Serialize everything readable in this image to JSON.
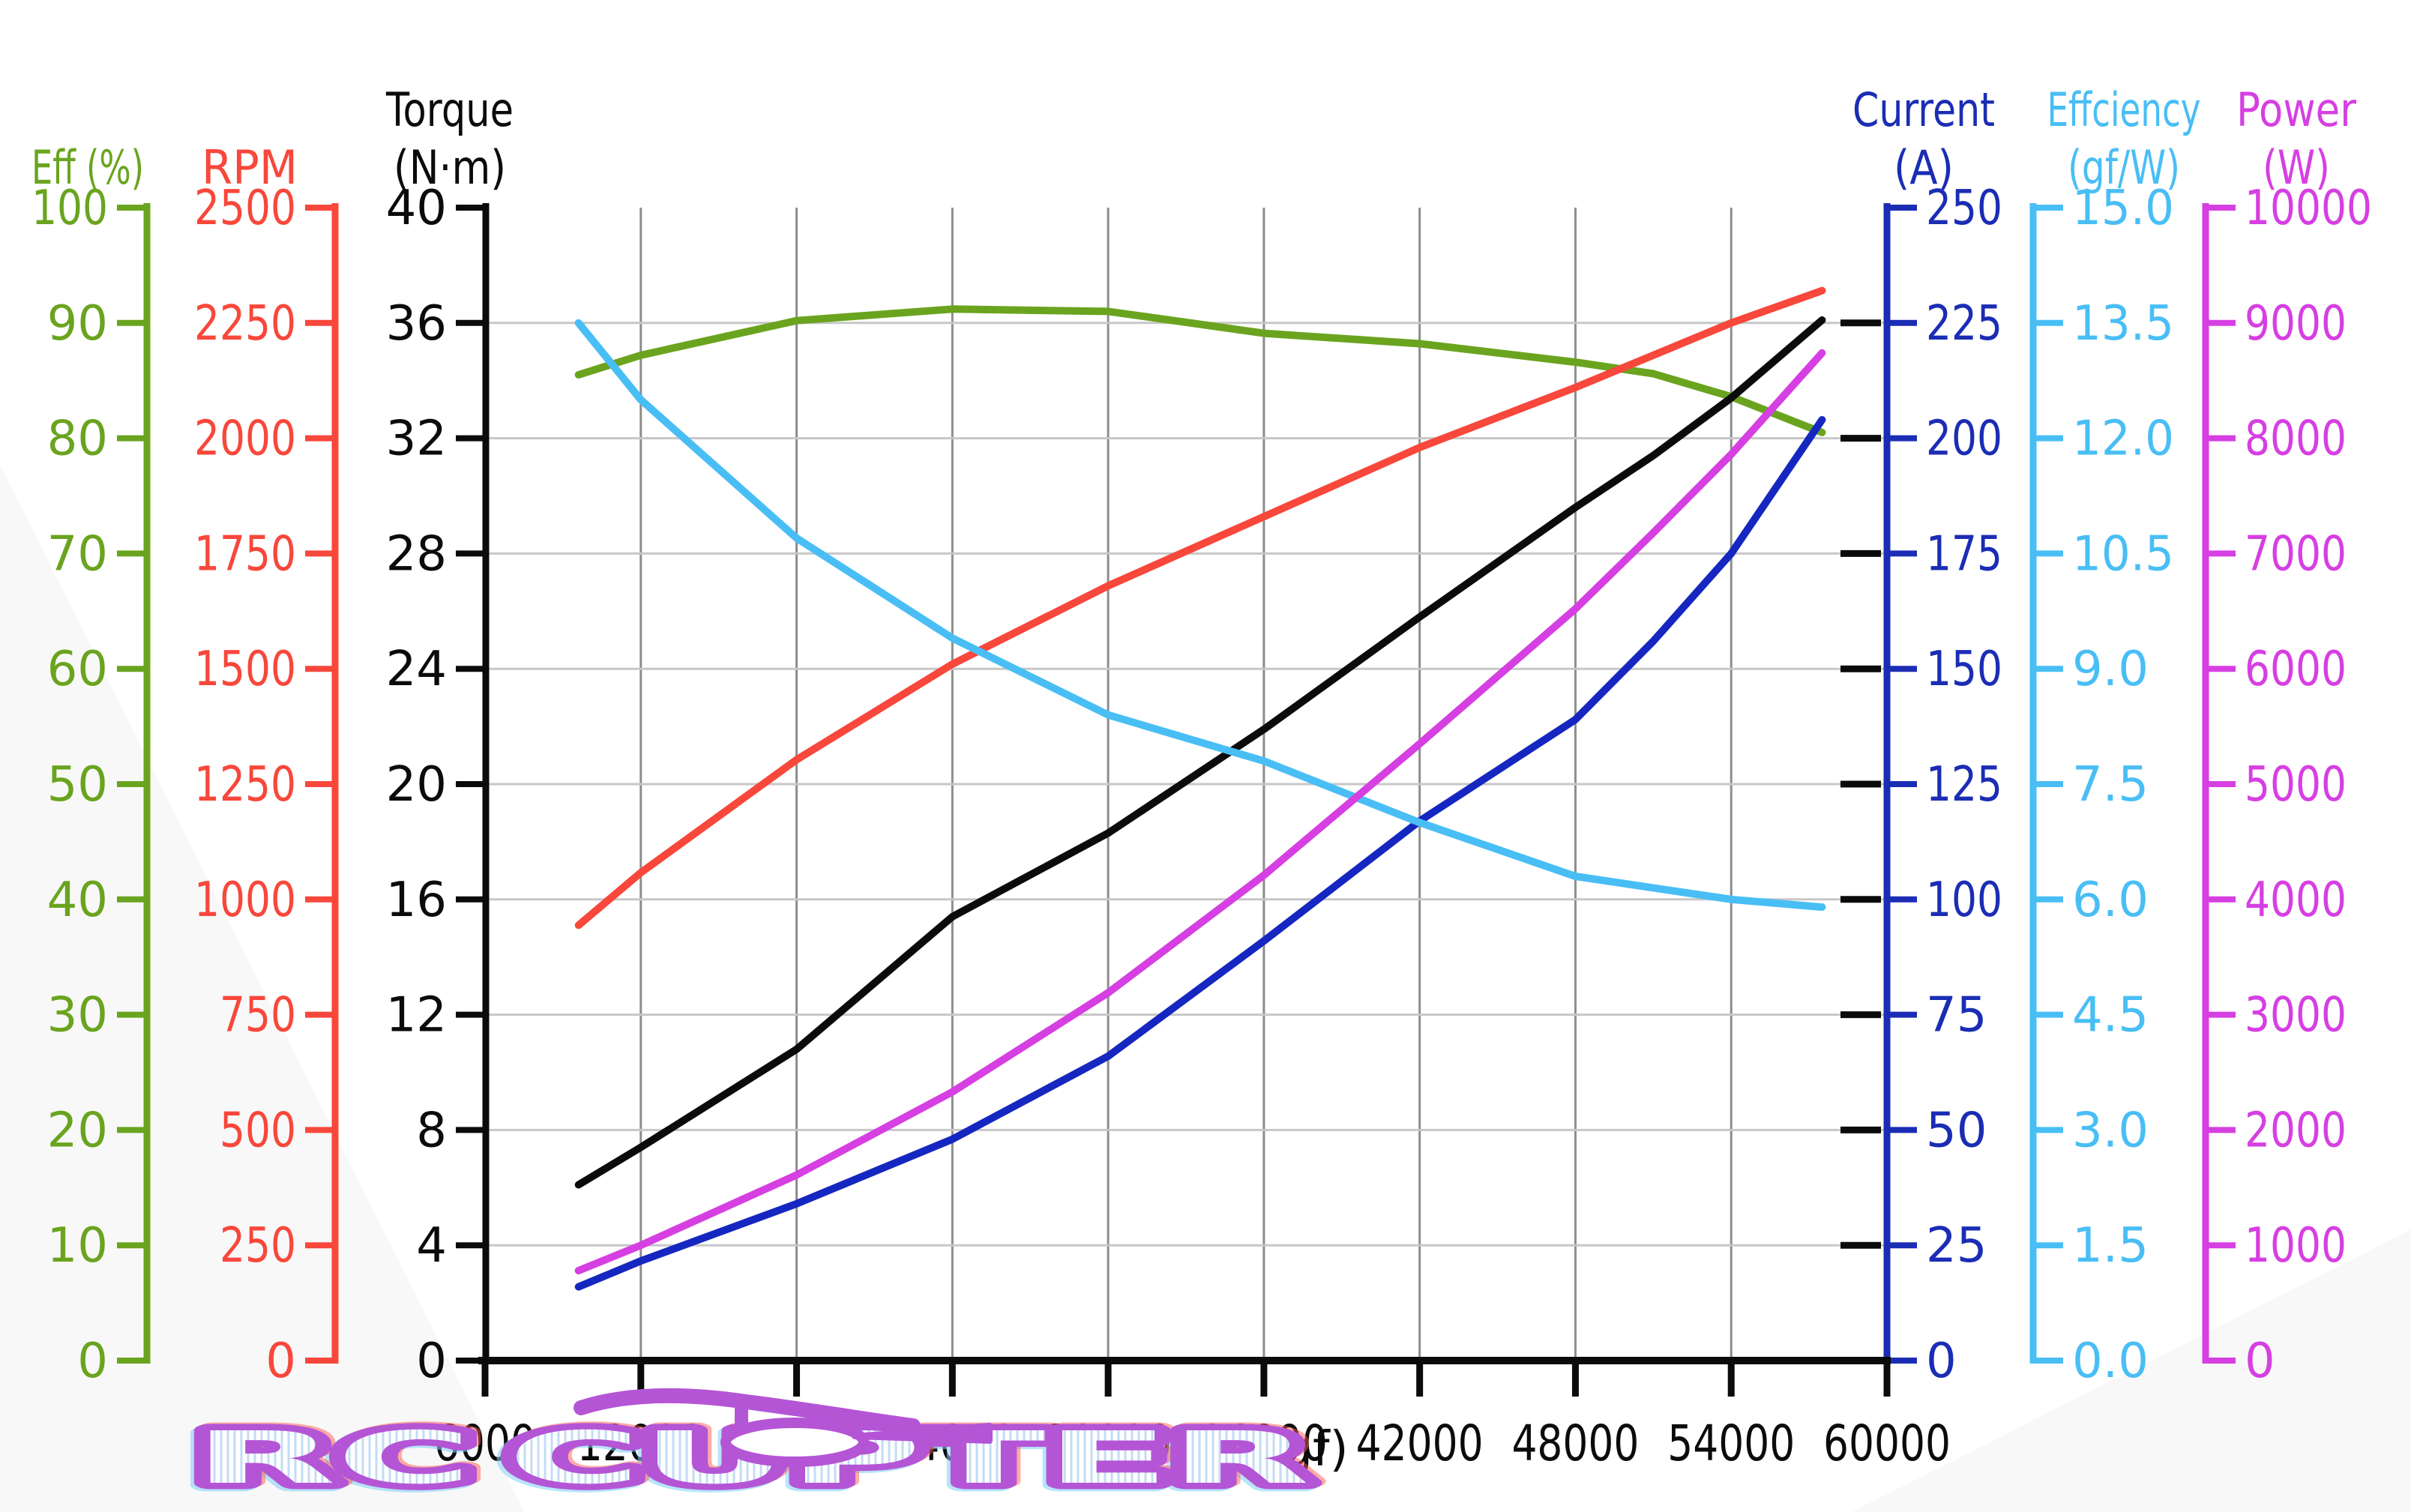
{
  "background_color": "#ffffff",
  "x_axis": {
    "label": "(gf)",
    "min": 6000,
    "max": 60000,
    "tick_step": 6000,
    "ticks": [
      "6000",
      "12000",
      "18000",
      "24000",
      "30000",
      "36000",
      "42000",
      "48000",
      "54000",
      "60000"
    ],
    "color": "#0b0b0b"
  },
  "left_axes": [
    {
      "id": "eff",
      "title_lines": [
        "Eff (%)"
      ],
      "color": "#6aa41f",
      "max": 100,
      "step": 10,
      "tick_labels": [
        "100",
        "90",
        "80",
        "70",
        "60",
        "50",
        "40",
        "30",
        "20",
        "10",
        "0"
      ]
    },
    {
      "id": "rpm",
      "title_lines": [
        "RPM"
      ],
      "color": "#f8473b",
      "max": 2500,
      "step": 250,
      "tick_labels": [
        "2500",
        "2250",
        "2000",
        "1750",
        "1500",
        "1250",
        "1000",
        "750",
        "500",
        "250",
        "0"
      ]
    },
    {
      "id": "torque",
      "title_lines": [
        "Torque",
        "(N·m)"
      ],
      "color": "#0b0b0b",
      "max": 40,
      "step": 4,
      "tick_labels": [
        "40",
        "36",
        "32",
        "28",
        "24",
        "20",
        "16",
        "12",
        "8",
        "4",
        "0"
      ]
    }
  ],
  "right_axes": [
    {
      "id": "current",
      "title_lines": [
        "Current",
        "(A)"
      ],
      "color": "#1b2db4",
      "max": 250,
      "step": 25,
      "tick_labels": [
        "250",
        "225",
        "200",
        "175",
        "150",
        "125",
        "100",
        "75",
        "50",
        "25",
        "0"
      ]
    },
    {
      "id": "effciency",
      "title_lines": [
        "Effciency",
        "(gf/W)"
      ],
      "color": "#49bef5",
      "max": 15,
      "step": 1.5,
      "tick_labels": [
        "15.0",
        "13.5",
        "12.0",
        "10.5",
        "9.0",
        "7.5",
        "6.0",
        "4.5",
        "3.0",
        "1.5",
        "0.0"
      ]
    },
    {
      "id": "power",
      "title_lines": [
        "Power",
        "(W)"
      ],
      "color": "#d63fe2",
      "max": 10000,
      "step": 1000,
      "tick_labels": [
        "10000",
        "9000",
        "8000",
        "7000",
        "6000",
        "5000",
        "4000",
        "3000",
        "2000",
        "1000",
        "0"
      ]
    }
  ],
  "chart_data": {
    "type": "line",
    "xlabel": "(gf)",
    "x_range": [
      6000,
      60000
    ],
    "grid": true,
    "x": [
      9600,
      12000,
      18000,
      24000,
      30000,
      36000,
      42000,
      48000,
      51000,
      54000,
      57500
    ],
    "series": [
      {
        "name": "Eff (%)",
        "axis": "eff",
        "axis_max": 100,
        "color": "#6aa41f",
        "values": [
          85.5,
          87.2,
          90.2,
          91.2,
          91.0,
          89.1,
          88.2,
          86.6,
          85.6,
          83.6,
          80.5
        ]
      },
      {
        "name": "RPM",
        "axis": "rpm",
        "axis_max": 2500,
        "color": "#f8473b",
        "values": [
          944,
          1058,
          1303,
          1510,
          1680,
          1830,
          1980,
          2110,
          2180,
          2250,
          2320
        ]
      },
      {
        "name": "Torque (N·m)",
        "axis": "torque",
        "axis_max": 40,
        "color": "#0b0b0b",
        "values": [
          6.1,
          7.4,
          10.8,
          15.4,
          18.3,
          21.9,
          25.8,
          29.6,
          31.4,
          33.4,
          36.1
        ]
      },
      {
        "name": "Current (A)",
        "axis": "current",
        "axis_max": 250,
        "color": "#1527c0",
        "values": [
          16,
          21.6,
          34,
          48,
          66,
          91,
          117,
          139,
          156,
          175,
          204
        ]
      },
      {
        "name": "Effciency (gf/W)",
        "axis": "effciency",
        "axis_max": 15,
        "color": "#49bef5",
        "values": [
          13.5,
          12.5,
          10.7,
          9.4,
          8.4,
          7.8,
          7.0,
          6.3,
          6.15,
          6.0,
          5.9
        ]
      },
      {
        "name": "Power (W)",
        "axis": "power",
        "axis_max": 10000,
        "color": "#d63fe2",
        "values": [
          780,
          1000,
          1610,
          2330,
          3190,
          4210,
          5350,
          6520,
          7180,
          7860,
          8740
        ]
      }
    ]
  },
  "watermark": {
    "full_text": "RC CUPTER",
    "text_left": "RC",
    "text_right": "CUPTER",
    "color": "#b455d6",
    "helicopter_icon": "helicopter-icon"
  }
}
